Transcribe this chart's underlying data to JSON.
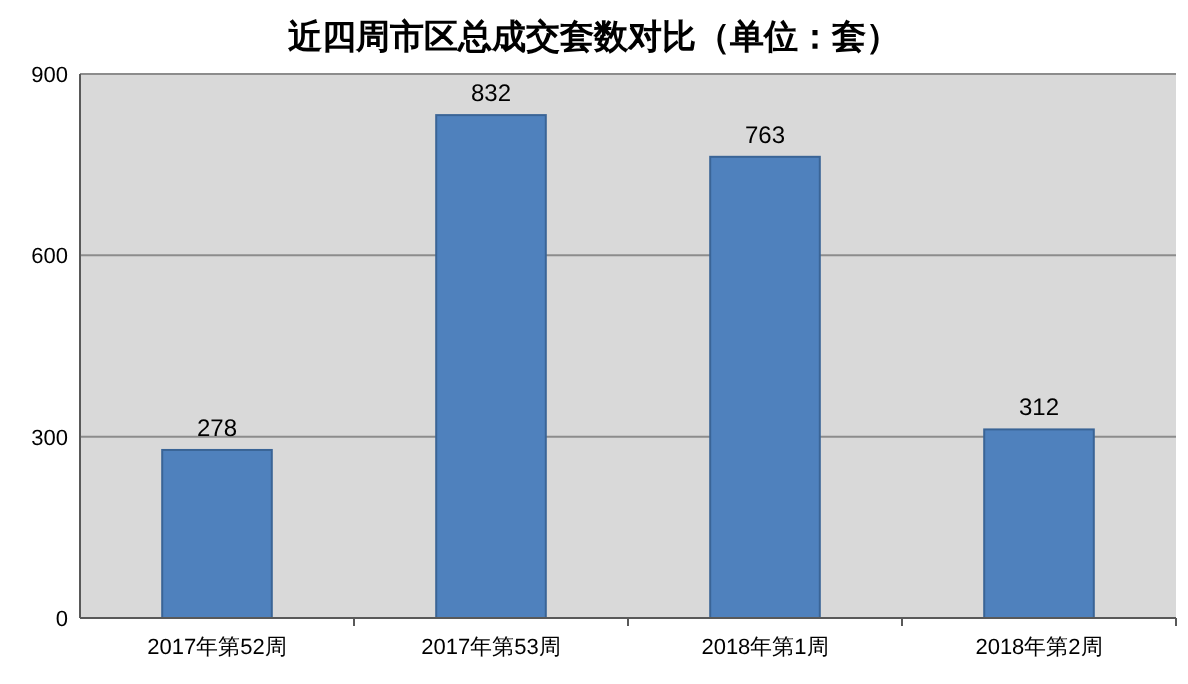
{
  "chart_data": {
    "type": "bar",
    "title": "近四周市区总成交套数对比（单位：套）",
    "categories": [
      "2017年第52周",
      "2017年第53周",
      "2018年第1周",
      "2018年第2周"
    ],
    "values": [
      278,
      832,
      763,
      312
    ],
    "color": "#4f81bd",
    "ylim": [
      0,
      900
    ],
    "yticks": [
      0,
      300,
      600,
      900
    ],
    "grid": "y",
    "data_labels": true
  }
}
